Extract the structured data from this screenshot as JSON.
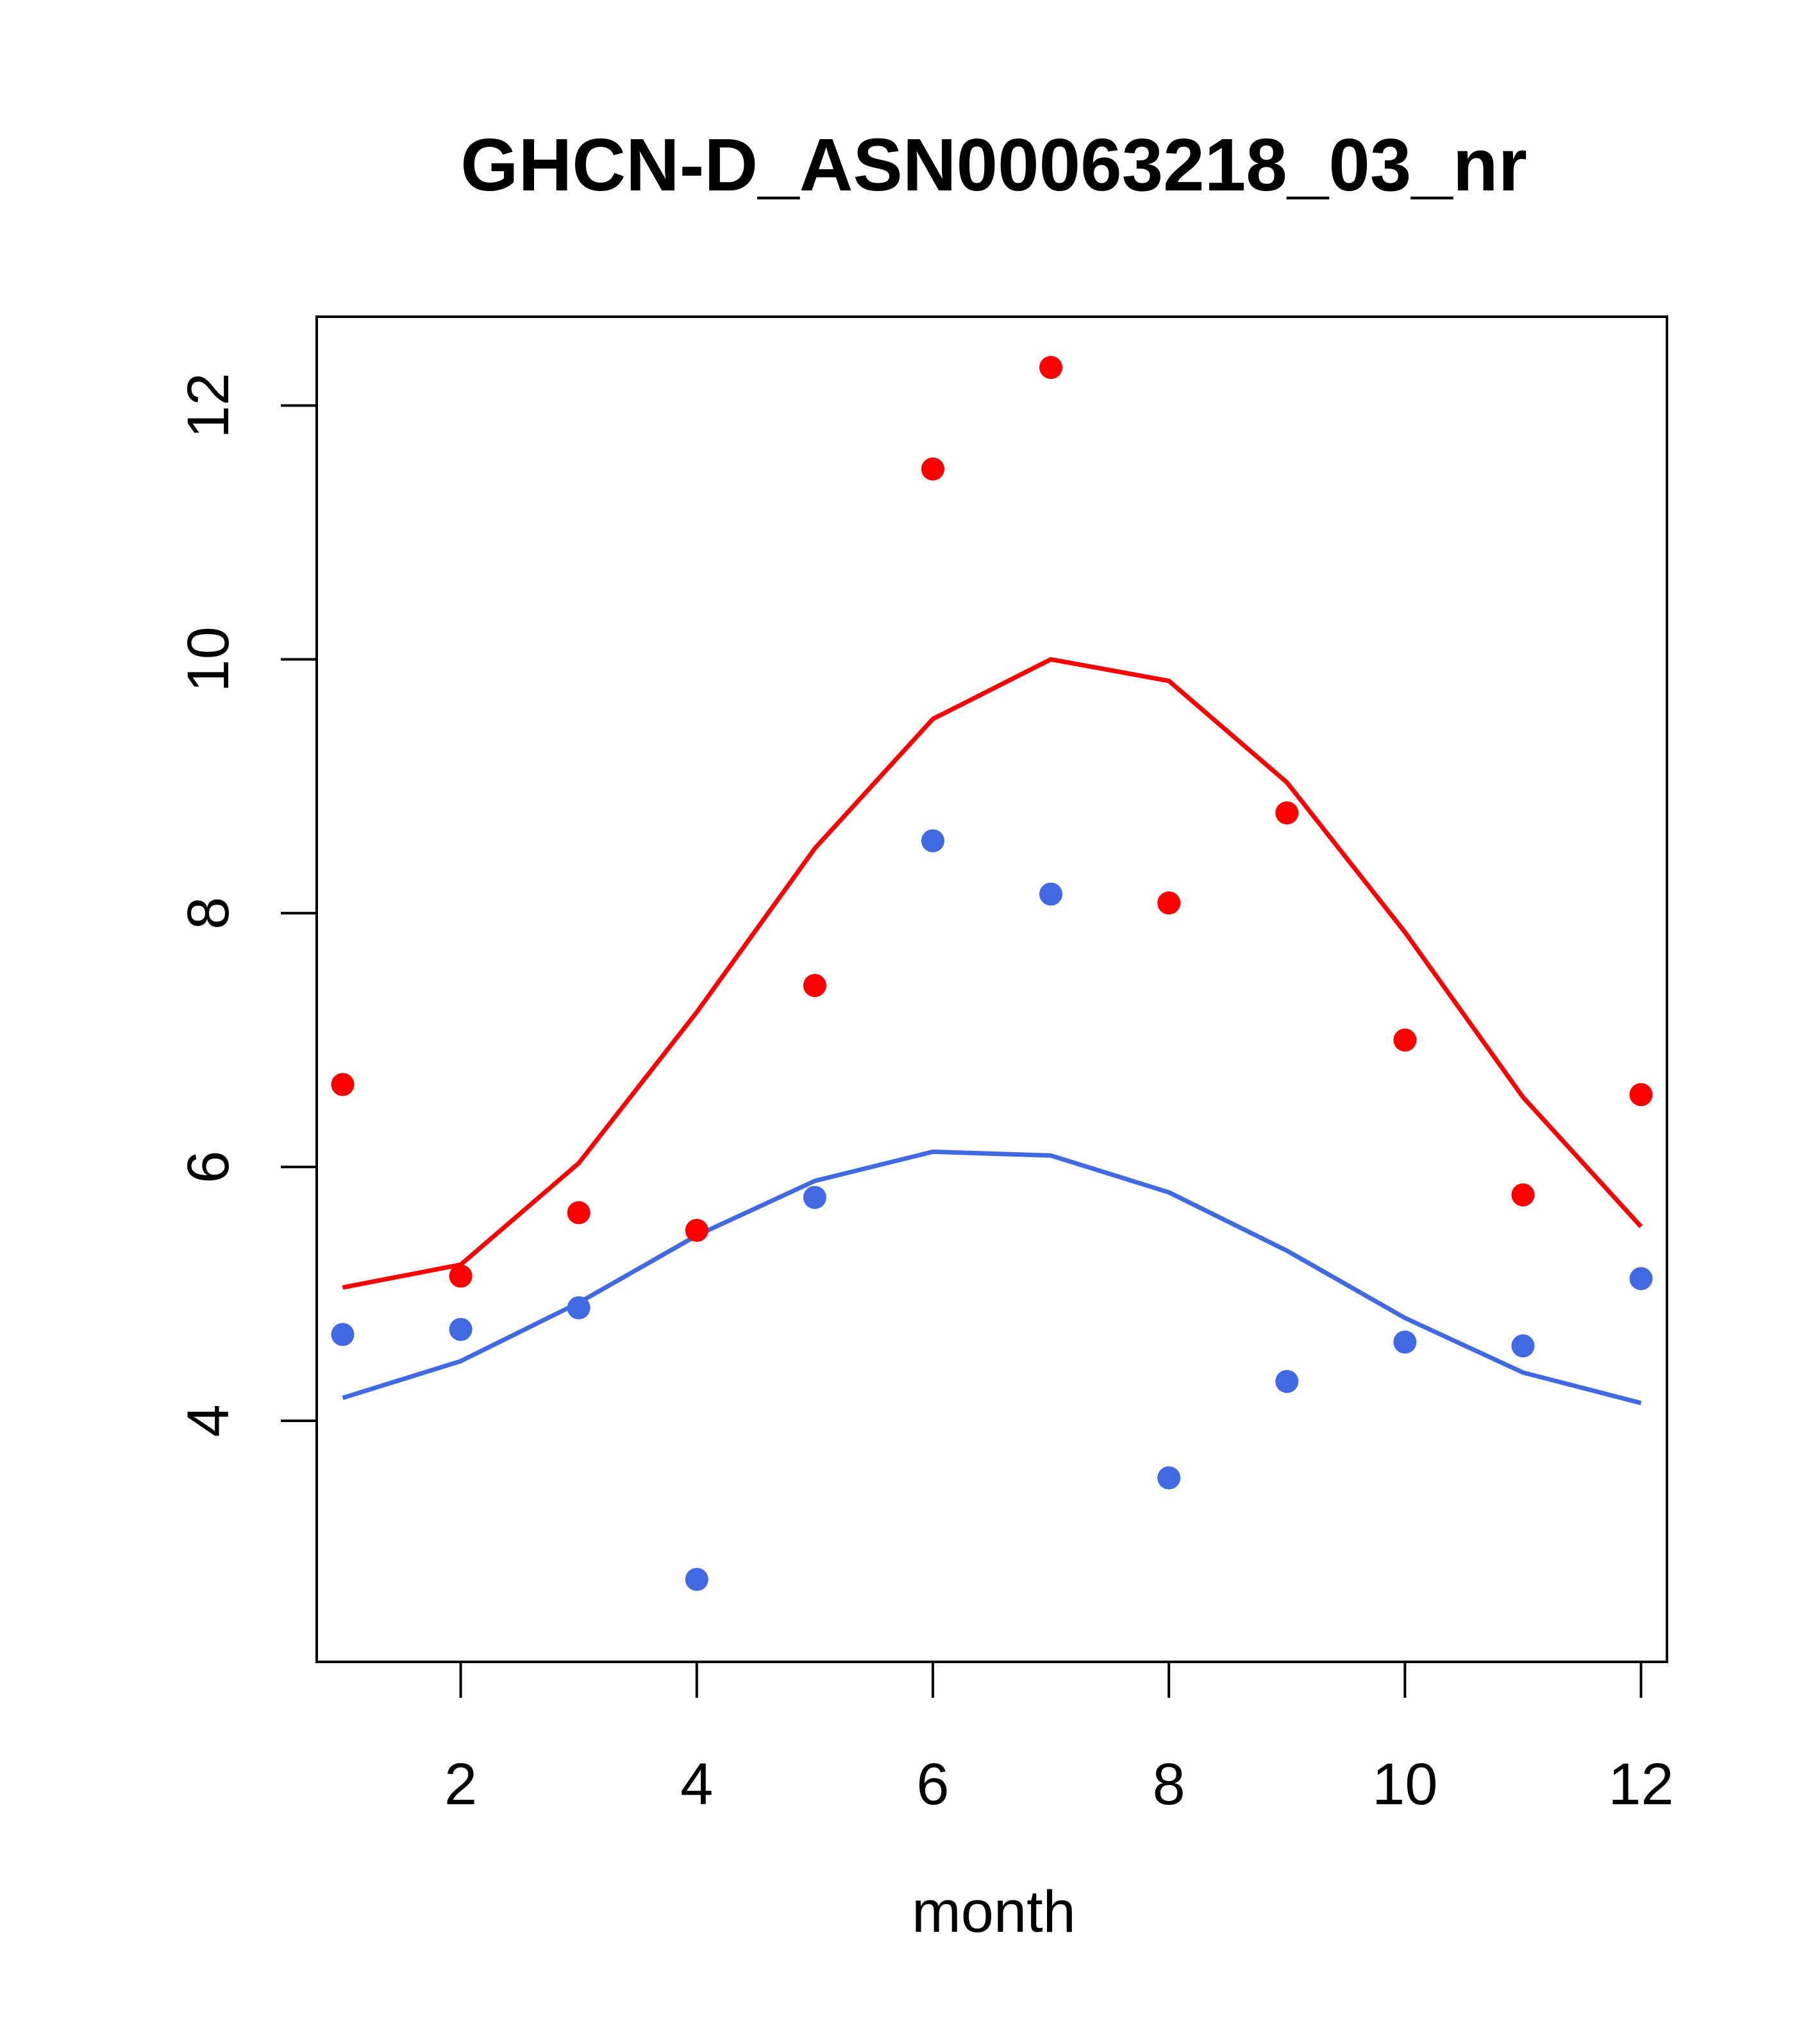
{
  "chart_data": {
    "type": "scatter",
    "title": "GHCN-D_ASN00063218_03_nr",
    "xlabel": "month",
    "ylabel": "",
    "xlim": [
      0.78,
      12.22
    ],
    "ylim": [
      2.1,
      12.7
    ],
    "x_ticks": [
      2,
      4,
      6,
      8,
      10,
      12
    ],
    "y_ticks": [
      4,
      6,
      8,
      10,
      12
    ],
    "x_tick_labels": [
      "2",
      "4",
      "6",
      "8",
      "10",
      "12"
    ],
    "y_tick_labels": [
      "4",
      "6",
      "8",
      "10",
      "12"
    ],
    "grid": false,
    "legend": "none",
    "x": [
      1,
      2,
      3,
      4,
      5,
      6,
      7,
      8,
      9,
      10,
      11,
      12
    ],
    "series": [
      {
        "color": "#ff0000",
        "kind": "points",
        "values": [
          6.65,
          5.14,
          5.64,
          5.5,
          7.43,
          11.5,
          12.3,
          8.08,
          8.79,
          7.0,
          5.78,
          6.57
        ]
      },
      {
        "color": "#ff0000",
        "kind": "line",
        "values": [
          5.05,
          5.23,
          6.03,
          7.22,
          8.51,
          9.53,
          10.0,
          9.83,
          9.03,
          7.85,
          6.55,
          5.53
        ]
      },
      {
        "color": "#4169e1",
        "kind": "points",
        "values": [
          4.68,
          4.72,
          4.89,
          2.75,
          5.76,
          8.57,
          8.15,
          3.55,
          4.31,
          4.62,
          4.59,
          5.12
        ]
      },
      {
        "color": "#4169e1",
        "kind": "line",
        "values": [
          4.18,
          4.47,
          4.93,
          5.46,
          5.89,
          6.12,
          6.09,
          5.8,
          5.34,
          4.81,
          4.38,
          4.14
        ]
      }
    ]
  }
}
